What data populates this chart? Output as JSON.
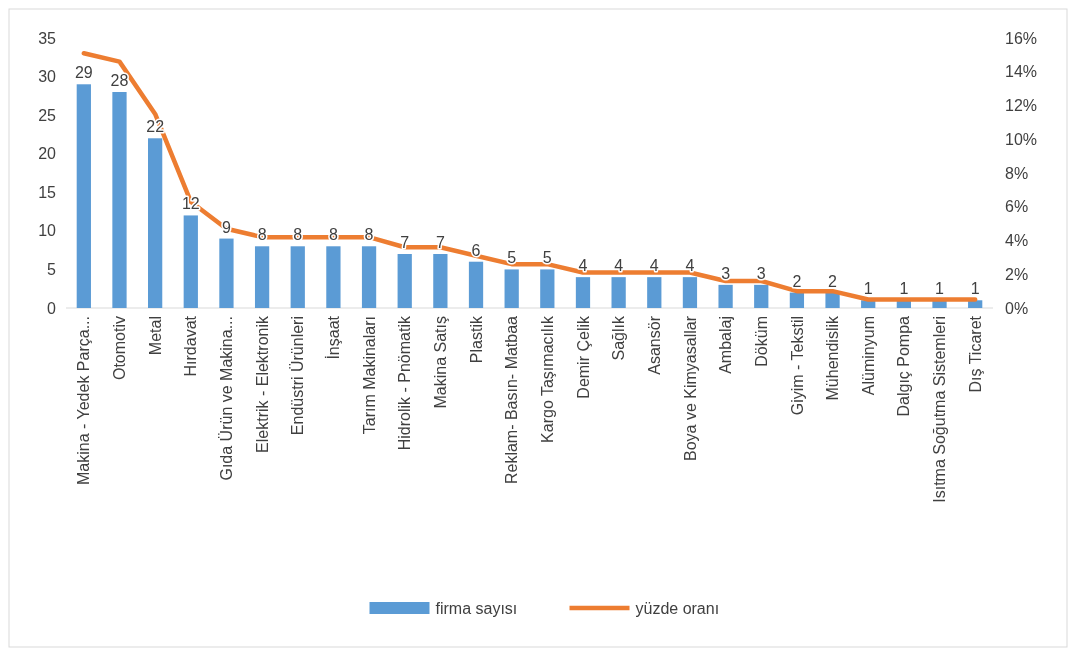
{
  "chart_data": {
    "type": "bar",
    "categories": [
      "Makina - Yedek Parça...",
      "Otomotiv",
      "Metal",
      "Hırdavat",
      "Gıda Ürün ve Makina...",
      "Elektrik - Elektronik",
      "Endüstri Ürünleri",
      "İnşaat",
      "Tarım Makinaları",
      "Hidrolik - Pnömatik",
      "Makina Satış",
      "Plastik",
      "Reklam- Basın- Matbaa",
      "Kargo Taşımacılık",
      "Demir Çelik",
      "Sağlık",
      "Asansör",
      "Boya ve Kimyasallar",
      "Ambalaj",
      "Döküm",
      "Giyim - Tekstil",
      "Mühendislik",
      "Alüminyum",
      "Dalgıç Pompa",
      "Isıtma Soğutma Sistemleri",
      "Dış Ticaret"
    ],
    "series": [
      {
        "name": "firma sayısı",
        "color": "#5b9bd5",
        "values": [
          29,
          28,
          22,
          12,
          9,
          8,
          8,
          8,
          8,
          7,
          7,
          6,
          5,
          5,
          4,
          4,
          4,
          4,
          3,
          3,
          2,
          2,
          1,
          1,
          1,
          1
        ],
        "value_labels": [
          "29",
          "28",
          "22",
          "12",
          "9",
          "8",
          "8",
          "8",
          "8",
          "7",
          "7",
          "6",
          "5",
          "5",
          "4",
          "4",
          "4",
          "4",
          "3",
          "3",
          "2",
          "2",
          "1",
          "1",
          "1",
          "1"
        ]
      },
      {
        "name": "yüzde oranı",
        "type": "line",
        "axis": "y2",
        "color": "#ed7d31",
        "values": [
          15.1,
          14.6,
          11.5,
          6.3,
          4.7,
          4.2,
          4.2,
          4.2,
          4.2,
          3.6,
          3.6,
          3.1,
          2.6,
          2.6,
          2.1,
          2.1,
          2.1,
          2.1,
          1.6,
          1.6,
          1.0,
          1.0,
          0.5,
          0.5,
          0.5,
          0.5
        ]
      }
    ],
    "ylim": [
      0,
      35
    ],
    "yticks": [
      0,
      5,
      10,
      15,
      20,
      25,
      30,
      35
    ],
    "y2lim": [
      0,
      16
    ],
    "y2ticks": [
      {
        "value": 0,
        "label": "0%"
      },
      {
        "value": 2,
        "label": "2%"
      },
      {
        "value": 4,
        "label": "4%"
      },
      {
        "value": 6,
        "label": "6%"
      },
      {
        "value": 8,
        "label": "8%"
      },
      {
        "value": 10,
        "label": "10%"
      },
      {
        "value": 12,
        "label": "12%"
      },
      {
        "value": 14,
        "label": "14%"
      },
      {
        "value": 16,
        "label": "16%"
      }
    ],
    "grid": false,
    "legend": "bottom",
    "marker": "none",
    "line_style": "solid"
  }
}
